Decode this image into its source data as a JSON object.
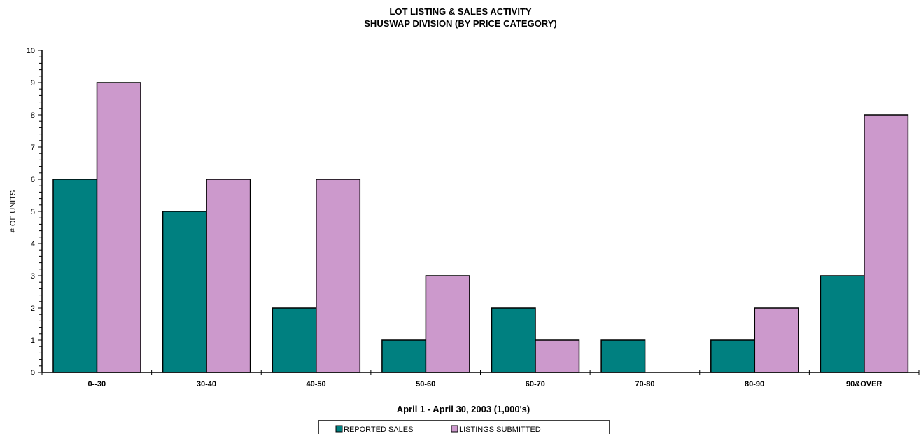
{
  "chart_data": {
    "type": "bar",
    "title": "LOT LISTING & SALES ACTIVITY",
    "subtitle": "SHUSWAP DIVISION (BY PRICE CATEGORY)",
    "xlabel": "April 1 - April 30, 2003 (1,000's)",
    "ylabel": "# OF UNITS",
    "ylim": [
      0,
      10
    ],
    "yticks": [
      "0",
      "1",
      "2",
      "3",
      "4",
      "5",
      "6",
      "7",
      "8",
      "9",
      "10"
    ],
    "categories": [
      "0--30",
      "30-40",
      "40-50",
      "50-60",
      "60-70",
      "70-80",
      "80-90",
      "90&OVER"
    ],
    "series": [
      {
        "name": "REPORTED SALES",
        "values": [
          6,
          5,
          2,
          1,
          2,
          1,
          1,
          3
        ],
        "color": "#008080"
      },
      {
        "name": "LISTINGS SUBMITTED",
        "values": [
          9,
          6,
          6,
          3,
          1,
          0,
          2,
          8
        ],
        "color": "#CC99CC"
      }
    ],
    "grid": false,
    "legend_position": "bottom"
  }
}
